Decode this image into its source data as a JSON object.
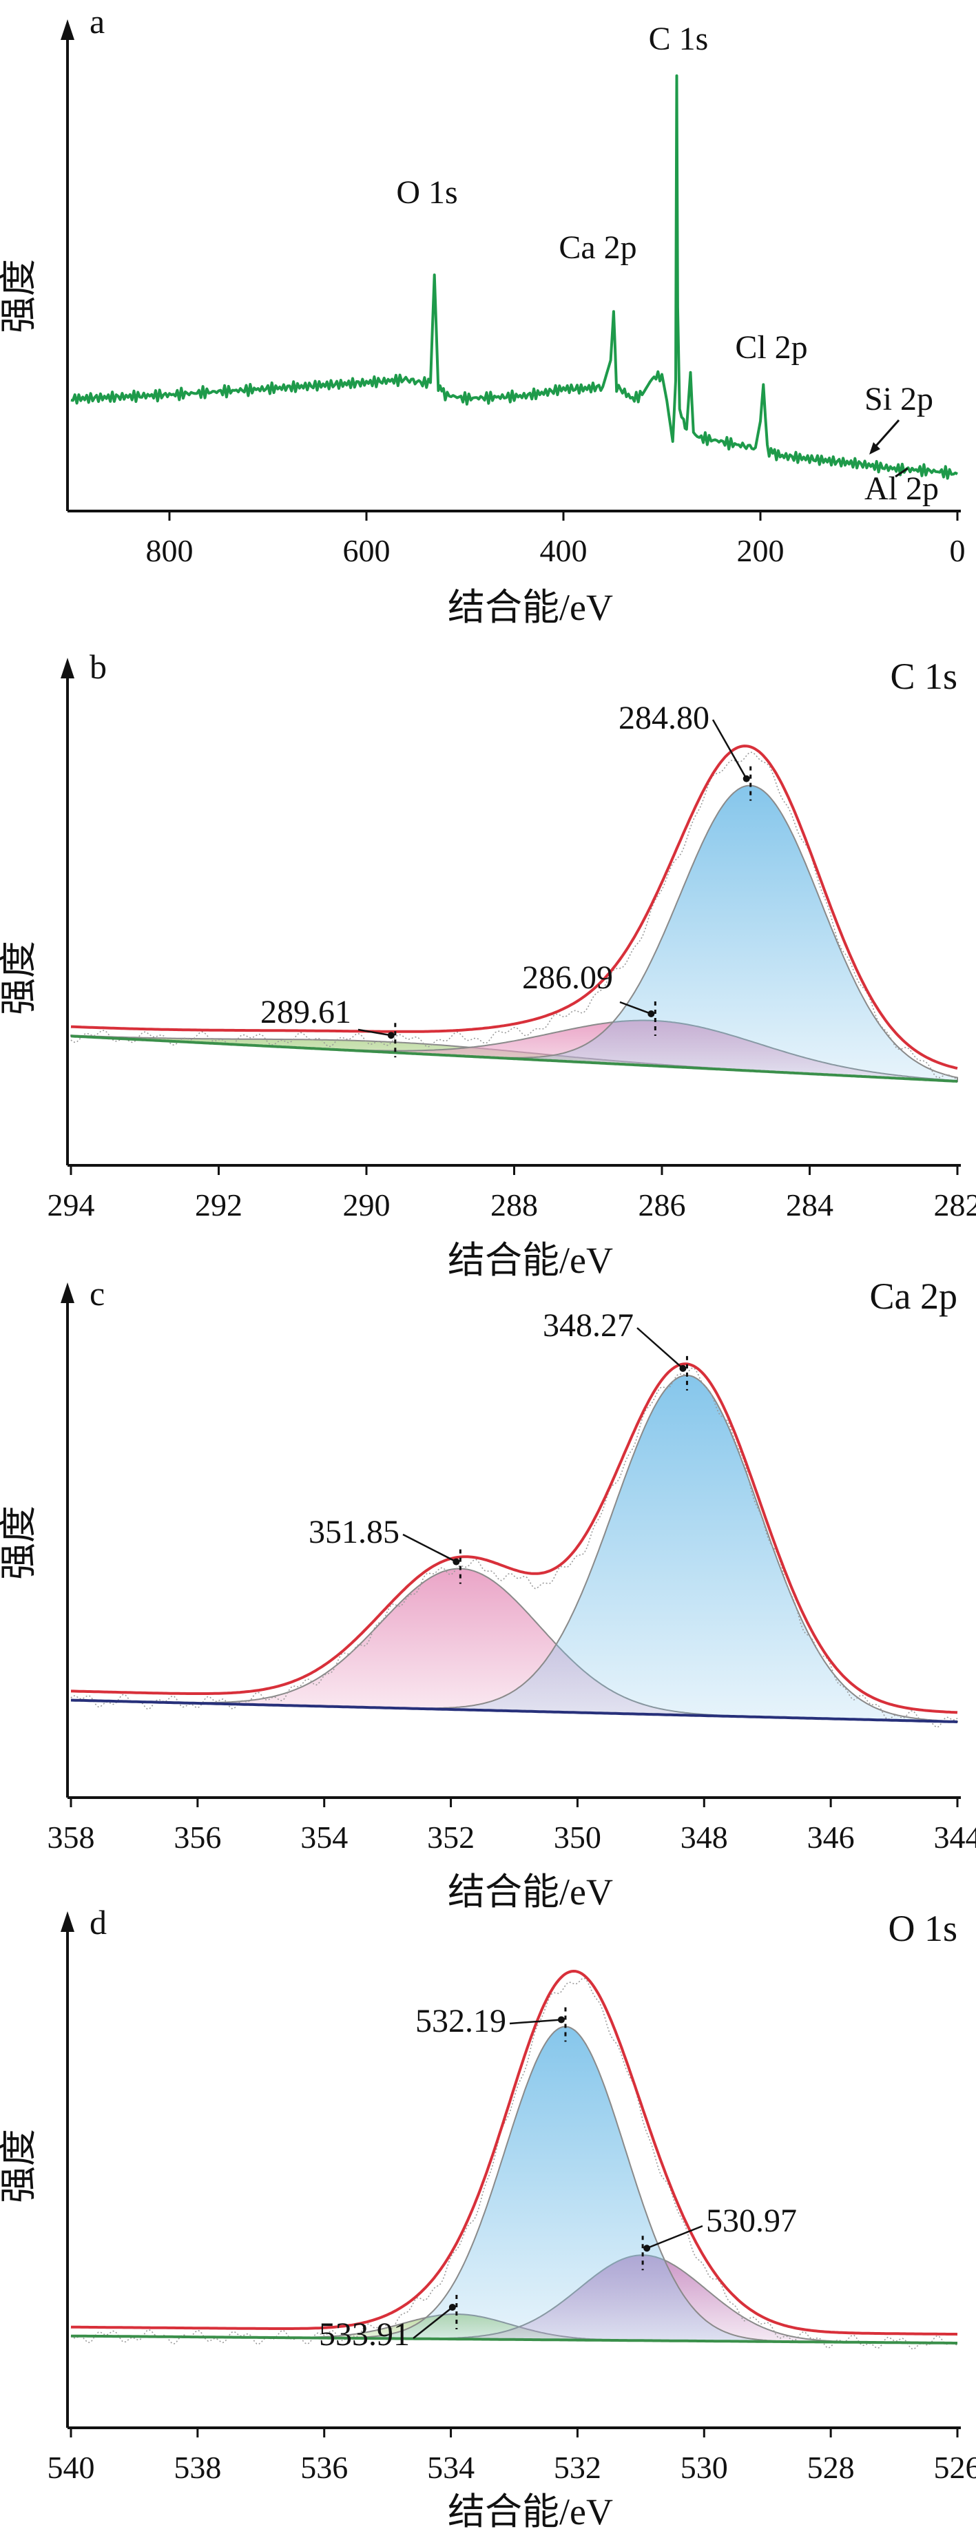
{
  "figure": {
    "colors": {
      "axis": "#111111",
      "survey": "#1e9a4a",
      "envelope": "#d8303a",
      "baseline_green": "#3a8f4a",
      "baseline_blue": "#27307a",
      "fill_blue": "#7fc3ea",
      "fill_pink": "#e9a0c4",
      "fill_green": "#b9d89a",
      "fill_purple": "#c98fc3",
      "raw_points": "#9a9a9a"
    }
  },
  "chart_data": [
    {
      "type": "line",
      "panel": "a",
      "title": "",
      "xlabel": "结合能/eV",
      "ylabel": "强度",
      "xlim": [
        900,
        0
      ],
      "x_reversed": true,
      "x_ticks": [
        800,
        600,
        400,
        200,
        0
      ],
      "x_tick_labels": [
        "800",
        "600",
        "400",
        "200",
        "0"
      ],
      "grid": false,
      "annotations": [
        {
          "text": "O 1s",
          "x": 531
        },
        {
          "text": "Ca 2p",
          "x": 348
        },
        {
          "text": "C 1s",
          "x": 285
        },
        {
          "text": "Cl 2p",
          "x": 199
        },
        {
          "text": "Si 2p",
          "x": 102
        },
        {
          "text": "Al 2p",
          "x": 74
        }
      ],
      "series": [
        {
          "x": [
            900,
            850,
            800,
            750,
            700,
            650,
            600,
            560,
            545,
            535,
            531,
            527,
            520,
            500,
            480,
            460,
            440,
            420,
            400,
            380,
            360,
            352,
            349,
            346,
            340,
            330,
            320,
            310,
            300,
            295,
            289,
            286,
            285,
            284,
            282,
            278,
            275,
            271,
            268,
            262,
            240,
            220,
            205,
            200,
            197,
            193,
            180,
            160,
            140,
            120,
            100,
            80,
            60,
            40,
            20,
            0
          ],
          "y": [
            20.5,
            21.0,
            21.5,
            22.3,
            23.0,
            23.8,
            24.5,
            25.3,
            24.5,
            24.5,
            51,
            23.5,
            21.5,
            20.6,
            20.8,
            21.0,
            21.2,
            22.0,
            23.0,
            23.0,
            23.5,
            30,
            42,
            23.5,
            22.5,
            20.5,
            21.5,
            25.5,
            26.5,
            20,
            10,
            25,
            100,
            43,
            18,
            14,
            13,
            27,
            12,
            11,
            10,
            9,
            8.5,
            15,
            24,
            8,
            6.5,
            6.0,
            5.5,
            5.0,
            4.5,
            3.8,
            3.2,
            3.0,
            2.6,
            2.0
          ]
        }
      ]
    },
    {
      "type": "line",
      "panel": "b",
      "title": "C 1s",
      "xlabel": "结合能/eV",
      "ylabel": "强度",
      "xlim": [
        294,
        282
      ],
      "x_reversed": true,
      "x_ticks": [
        294,
        292,
        290,
        288,
        286,
        284,
        282
      ],
      "x_tick_labels": [
        "294",
        "292",
        "290",
        "288",
        "286",
        "284",
        "282"
      ],
      "grid": false,
      "peaks": [
        {
          "label": "284.80",
          "position": 284.8,
          "height": 82,
          "width": 0.95
        },
        {
          "label": "286.09",
          "position": 286.09,
          "height": 13,
          "width": 1.4
        },
        {
          "label": "289.61",
          "position": 289.61,
          "height": 3,
          "width": 1.9
        }
      ],
      "baseline": {
        "start": 13,
        "end": 0
      },
      "series": [
        {
          "name": "envelope",
          "description": "sum of fitted components plus background"
        },
        {
          "name": "background",
          "description": "linear baseline"
        }
      ]
    },
    {
      "type": "line",
      "panel": "c",
      "title": "Ca 2p",
      "xlabel": "结合能/eV",
      "ylabel": "强度",
      "xlim": [
        358,
        344
      ],
      "x_reversed": true,
      "x_ticks": [
        358,
        356,
        354,
        352,
        350,
        348,
        346,
        344
      ],
      "x_tick_labels": [
        "358",
        "356",
        "354",
        "352",
        "350",
        "348",
        "346",
        "344"
      ],
      "grid": false,
      "peaks": [
        {
          "label": "348.27",
          "position": 348.27,
          "height": 94,
          "width": 1.15
        },
        {
          "label": "351.85",
          "position": 351.85,
          "height": 39,
          "width": 1.25
        }
      ],
      "baseline": {
        "start": 6,
        "end": 0
      },
      "series": [
        {
          "name": "envelope",
          "description": "sum of fitted components plus background"
        },
        {
          "name": "background",
          "description": "linear baseline"
        }
      ]
    },
    {
      "type": "line",
      "panel": "d",
      "title": "O 1s",
      "xlabel": "结合能/eV",
      "ylabel": "强度",
      "xlim": [
        540,
        526
      ],
      "x_reversed": true,
      "x_ticks": [
        540,
        538,
        536,
        534,
        532,
        530,
        528,
        526
      ],
      "x_tick_labels": [
        "540",
        "538",
        "536",
        "534",
        "532",
        "530",
        "528",
        "526"
      ],
      "grid": false,
      "peaks": [
        {
          "label": "532.19",
          "position": 532.19,
          "height": 88,
          "width": 0.95
        },
        {
          "label": "530.97",
          "position": 530.97,
          "height": 24,
          "width": 1.0
        },
        {
          "label": "533.91",
          "position": 533.91,
          "height": 7,
          "width": 0.85
        }
      ],
      "baseline": {
        "start": 2,
        "end": 0
      },
      "series": [
        {
          "name": "envelope",
          "description": "sum of fitted components plus background"
        },
        {
          "name": "background",
          "description": "linear baseline"
        }
      ]
    }
  ]
}
